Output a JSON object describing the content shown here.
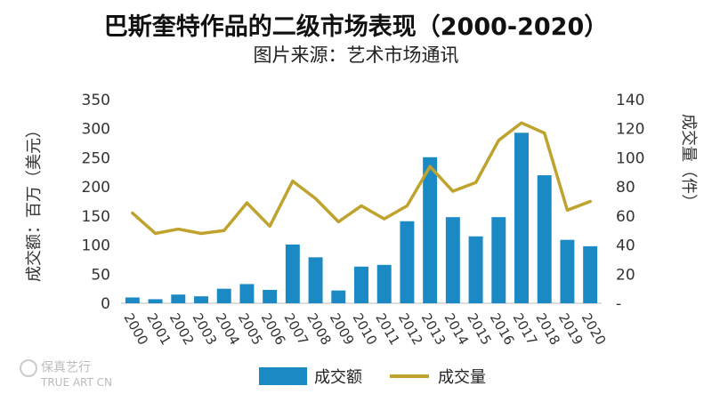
{
  "chart_data": {
    "type": "bar+line",
    "title": "巴斯奎特作品的二级市场表现（2000-2020）",
    "subtitle": "图片来源：艺术市场通讯",
    "categories": [
      "2000",
      "2001",
      "2002",
      "2003",
      "2004",
      "2005",
      "2006",
      "2007",
      "2008",
      "2009",
      "2010",
      "2011",
      "2012",
      "2013",
      "2014",
      "2015",
      "2016",
      "2017",
      "2018",
      "2019",
      "2020"
    ],
    "series": [
      {
        "name": "成交额",
        "axis": "left",
        "kind": "bar",
        "color": "#1b8ac4",
        "values": [
          10,
          7,
          15,
          12,
          25,
          33,
          23,
          101,
          79,
          22,
          63,
          66,
          141,
          251,
          148,
          115,
          148,
          293,
          220,
          109,
          98
        ]
      },
      {
        "name": "成交量",
        "axis": "right",
        "kind": "line",
        "color": "#bfa32e",
        "values": [
          62,
          48,
          51,
          48,
          50,
          69,
          53,
          84,
          72,
          56,
          67,
          58,
          67,
          94,
          77,
          83,
          112,
          124,
          117,
          64,
          70
        ]
      }
    ],
    "ylabel_left": "成交额：百万（美元）",
    "ylabel_right": "成交量（件）",
    "ylim_left": [
      0,
      350
    ],
    "yticks_left": [
      "0",
      "50",
      "100",
      "150",
      "200",
      "250",
      "300",
      "350"
    ],
    "ylim_right": [
      0,
      140
    ],
    "yticks_right": [
      "-",
      "20",
      "40",
      "60",
      "80",
      "100",
      "120",
      "140"
    ],
    "legend_position": "bottom"
  },
  "watermark": {
    "main": "保真艺行",
    "sub": "TRUE ART CN"
  }
}
